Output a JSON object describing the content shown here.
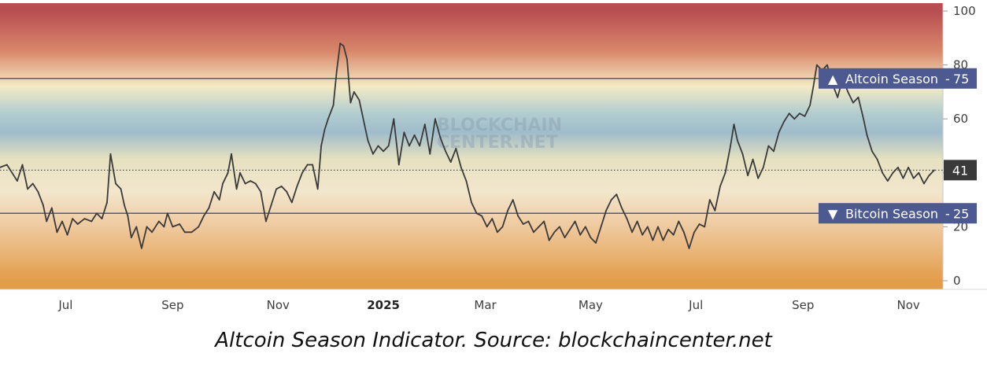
{
  "caption": "Altcoin Season Indicator. Source: blockchaincenter.net",
  "watermark": [
    "BLOCKCHAIN",
    "CENTER.NET"
  ],
  "chart_data": {
    "type": "line",
    "title": "",
    "xlabel": "",
    "ylabel": "",
    "ylim": [
      0,
      100
    ],
    "y_ticks": [
      0,
      20,
      40,
      60,
      80,
      100
    ],
    "x_ticks": [
      {
        "label": "Jul",
        "date": "2024-07-01",
        "bold": false
      },
      {
        "label": "Sep",
        "date": "2024-09-01",
        "bold": false
      },
      {
        "label": "Nov",
        "date": "2024-11-01",
        "bold": false
      },
      {
        "label": "2025",
        "date": "2025-01-01",
        "bold": true
      },
      {
        "label": "Mar",
        "date": "2025-03-01",
        "bold": false
      },
      {
        "label": "May",
        "date": "2025-05-01",
        "bold": false
      },
      {
        "label": "Jul",
        "date": "2025-07-01",
        "bold": false
      },
      {
        "label": "Sep",
        "date": "2025-09-01",
        "bold": false
      },
      {
        "label": "Nov",
        "date": "2025-11-01",
        "bold": false
      }
    ],
    "x_range": [
      "2024-05-24",
      "2025-11-21"
    ],
    "background_gradient": [
      {
        "value": 100,
        "color": "#b84e52"
      },
      {
        "value": 85,
        "color": "#d9886b"
      },
      {
        "value": 72,
        "color": "#f3eac4"
      },
      {
        "value": 62,
        "color": "#b2cdd0"
      },
      {
        "value": 55,
        "color": "#9fbccb"
      },
      {
        "value": 45,
        "color": "#e6e1c0"
      },
      {
        "value": 33,
        "color": "#f2e6cc"
      },
      {
        "value": 20,
        "color": "#efc99e"
      },
      {
        "value": 0,
        "color": "#e29d4a"
      }
    ],
    "reference_lines": [
      {
        "value": 75,
        "label": "Altcoin Season",
        "marker": "▲",
        "color": "#4d5a91"
      },
      {
        "value": 25,
        "label": "Bitcoin Season",
        "marker": "▼",
        "color": "#4d5a91"
      }
    ],
    "current_value": {
      "value": 41,
      "color": "#3a3a3a"
    },
    "series": [
      {
        "color": "#3a3a3a",
        "points": [
          [
            "2024-05-24",
            42
          ],
          [
            "2024-05-28",
            43
          ],
          [
            "2024-05-31",
            40
          ],
          [
            "2024-06-03",
            37
          ],
          [
            "2024-06-06",
            43
          ],
          [
            "2024-06-09",
            34
          ],
          [
            "2024-06-12",
            36
          ],
          [
            "2024-06-15",
            33
          ],
          [
            "2024-06-18",
            28
          ],
          [
            "2024-06-20",
            22
          ],
          [
            "2024-06-23",
            27
          ],
          [
            "2024-06-26",
            18
          ],
          [
            "2024-06-29",
            22
          ],
          [
            "2024-07-02",
            17
          ],
          [
            "2024-07-05",
            23
          ],
          [
            "2024-07-08",
            21
          ],
          [
            "2024-07-12",
            23
          ],
          [
            "2024-07-16",
            22
          ],
          [
            "2024-07-19",
            25
          ],
          [
            "2024-07-22",
            23
          ],
          [
            "2024-07-25",
            29
          ],
          [
            "2024-07-27",
            47
          ],
          [
            "2024-07-30",
            36
          ],
          [
            "2024-08-02",
            34
          ],
          [
            "2024-08-04",
            28
          ],
          [
            "2024-08-06",
            24
          ],
          [
            "2024-08-08",
            16
          ],
          [
            "2024-08-11",
            20
          ],
          [
            "2024-08-14",
            12
          ],
          [
            "2024-08-17",
            20
          ],
          [
            "2024-08-20",
            18
          ],
          [
            "2024-08-24",
            22
          ],
          [
            "2024-08-27",
            20
          ],
          [
            "2024-08-29",
            25
          ],
          [
            "2024-09-01",
            20
          ],
          [
            "2024-09-05",
            21
          ],
          [
            "2024-09-08",
            18
          ],
          [
            "2024-09-12",
            18
          ],
          [
            "2024-09-16",
            20
          ],
          [
            "2024-09-19",
            24
          ],
          [
            "2024-09-22",
            27
          ],
          [
            "2024-09-25",
            33
          ],
          [
            "2024-09-28",
            30
          ],
          [
            "2024-09-30",
            36
          ],
          [
            "2024-10-03",
            40
          ],
          [
            "2024-10-05",
            47
          ],
          [
            "2024-10-08",
            34
          ],
          [
            "2024-10-10",
            40
          ],
          [
            "2024-10-13",
            36
          ],
          [
            "2024-10-16",
            37
          ],
          [
            "2024-10-19",
            36
          ],
          [
            "2024-10-22",
            33
          ],
          [
            "2024-10-25",
            22
          ],
          [
            "2024-10-28",
            28
          ],
          [
            "2024-10-31",
            34
          ],
          [
            "2024-11-03",
            35
          ],
          [
            "2024-11-06",
            33
          ],
          [
            "2024-11-09",
            29
          ],
          [
            "2024-11-12",
            35
          ],
          [
            "2024-11-15",
            40
          ],
          [
            "2024-11-18",
            43
          ],
          [
            "2024-11-21",
            43
          ],
          [
            "2024-11-24",
            34
          ],
          [
            "2024-11-26",
            50
          ],
          [
            "2024-11-28",
            56
          ],
          [
            "2024-11-30",
            60
          ],
          [
            "2024-12-03",
            65
          ],
          [
            "2024-12-05",
            78
          ],
          [
            "2024-12-07",
            88
          ],
          [
            "2024-12-09",
            87
          ],
          [
            "2024-12-11",
            82
          ],
          [
            "2024-12-13",
            66
          ],
          [
            "2024-12-15",
            70
          ],
          [
            "2024-12-18",
            67
          ],
          [
            "2024-12-21",
            58
          ],
          [
            "2024-12-23",
            52
          ],
          [
            "2024-12-26",
            47
          ],
          [
            "2024-12-29",
            50
          ],
          [
            "2025-01-01",
            48
          ],
          [
            "2025-01-04",
            50
          ],
          [
            "2025-01-07",
            60
          ],
          [
            "2025-01-10",
            43
          ],
          [
            "2025-01-13",
            55
          ],
          [
            "2025-01-16",
            50
          ],
          [
            "2025-01-19",
            54
          ],
          [
            "2025-01-22",
            50
          ],
          [
            "2025-01-25",
            58
          ],
          [
            "2025-01-28",
            47
          ],
          [
            "2025-01-31",
            60
          ],
          [
            "2025-02-03",
            53
          ],
          [
            "2025-02-06",
            48
          ],
          [
            "2025-02-09",
            44
          ],
          [
            "2025-02-12",
            49
          ],
          [
            "2025-02-15",
            42
          ],
          [
            "2025-02-18",
            37
          ],
          [
            "2025-02-21",
            29
          ],
          [
            "2025-02-24",
            25
          ],
          [
            "2025-02-27",
            24
          ],
          [
            "2025-03-02",
            20
          ],
          [
            "2025-03-05",
            23
          ],
          [
            "2025-03-08",
            18
          ],
          [
            "2025-03-11",
            20
          ],
          [
            "2025-03-14",
            26
          ],
          [
            "2025-03-17",
            30
          ],
          [
            "2025-03-20",
            24
          ],
          [
            "2025-03-23",
            21
          ],
          [
            "2025-03-26",
            22
          ],
          [
            "2025-03-29",
            18
          ],
          [
            "2025-04-01",
            20
          ],
          [
            "2025-04-04",
            22
          ],
          [
            "2025-04-07",
            15
          ],
          [
            "2025-04-10",
            18
          ],
          [
            "2025-04-13",
            20
          ],
          [
            "2025-04-16",
            16
          ],
          [
            "2025-04-19",
            19
          ],
          [
            "2025-04-22",
            22
          ],
          [
            "2025-04-25",
            17
          ],
          [
            "2025-04-28",
            20
          ],
          [
            "2025-05-01",
            16
          ],
          [
            "2025-05-04",
            14
          ],
          [
            "2025-05-07",
            20
          ],
          [
            "2025-05-10",
            26
          ],
          [
            "2025-05-13",
            30
          ],
          [
            "2025-05-16",
            32
          ],
          [
            "2025-05-19",
            27
          ],
          [
            "2025-05-22",
            23
          ],
          [
            "2025-05-25",
            18
          ],
          [
            "2025-05-28",
            22
          ],
          [
            "2025-05-31",
            17
          ],
          [
            "2025-06-03",
            20
          ],
          [
            "2025-06-06",
            15
          ],
          [
            "2025-06-09",
            20
          ],
          [
            "2025-06-12",
            15
          ],
          [
            "2025-06-15",
            19
          ],
          [
            "2025-06-18",
            17
          ],
          [
            "2025-06-21",
            22
          ],
          [
            "2025-06-24",
            18
          ],
          [
            "2025-06-27",
            12
          ],
          [
            "2025-06-30",
            18
          ],
          [
            "2025-07-03",
            21
          ],
          [
            "2025-07-06",
            20
          ],
          [
            "2025-07-09",
            30
          ],
          [
            "2025-07-12",
            26
          ],
          [
            "2025-07-15",
            35
          ],
          [
            "2025-07-18",
            40
          ],
          [
            "2025-07-21",
            50
          ],
          [
            "2025-07-23",
            58
          ],
          [
            "2025-07-25",
            52
          ],
          [
            "2025-07-28",
            47
          ],
          [
            "2025-07-31",
            39
          ],
          [
            "2025-08-03",
            45
          ],
          [
            "2025-08-06",
            38
          ],
          [
            "2025-08-09",
            42
          ],
          [
            "2025-08-12",
            50
          ],
          [
            "2025-08-15",
            48
          ],
          [
            "2025-08-18",
            55
          ],
          [
            "2025-08-21",
            59
          ],
          [
            "2025-08-24",
            62
          ],
          [
            "2025-08-27",
            60
          ],
          [
            "2025-08-30",
            62
          ],
          [
            "2025-09-02",
            61
          ],
          [
            "2025-09-05",
            65
          ],
          [
            "2025-09-07",
            72
          ],
          [
            "2025-09-09",
            80
          ],
          [
            "2025-09-12",
            78
          ],
          [
            "2025-09-15",
            80
          ],
          [
            "2025-09-18",
            73
          ],
          [
            "2025-09-21",
            68
          ],
          [
            "2025-09-24",
            75
          ],
          [
            "2025-09-27",
            70
          ],
          [
            "2025-09-30",
            66
          ],
          [
            "2025-10-03",
            68
          ],
          [
            "2025-10-06",
            60
          ],
          [
            "2025-10-08",
            54
          ],
          [
            "2025-10-11",
            48
          ],
          [
            "2025-10-14",
            45
          ],
          [
            "2025-10-17",
            40
          ],
          [
            "2025-10-20",
            37
          ],
          [
            "2025-10-23",
            40
          ],
          [
            "2025-10-26",
            42
          ],
          [
            "2025-10-29",
            38
          ],
          [
            "2025-11-01",
            42
          ],
          [
            "2025-11-04",
            38
          ],
          [
            "2025-11-07",
            40
          ],
          [
            "2025-11-10",
            36
          ],
          [
            "2025-11-13",
            39
          ],
          [
            "2025-11-16",
            41
          ]
        ]
      }
    ]
  }
}
